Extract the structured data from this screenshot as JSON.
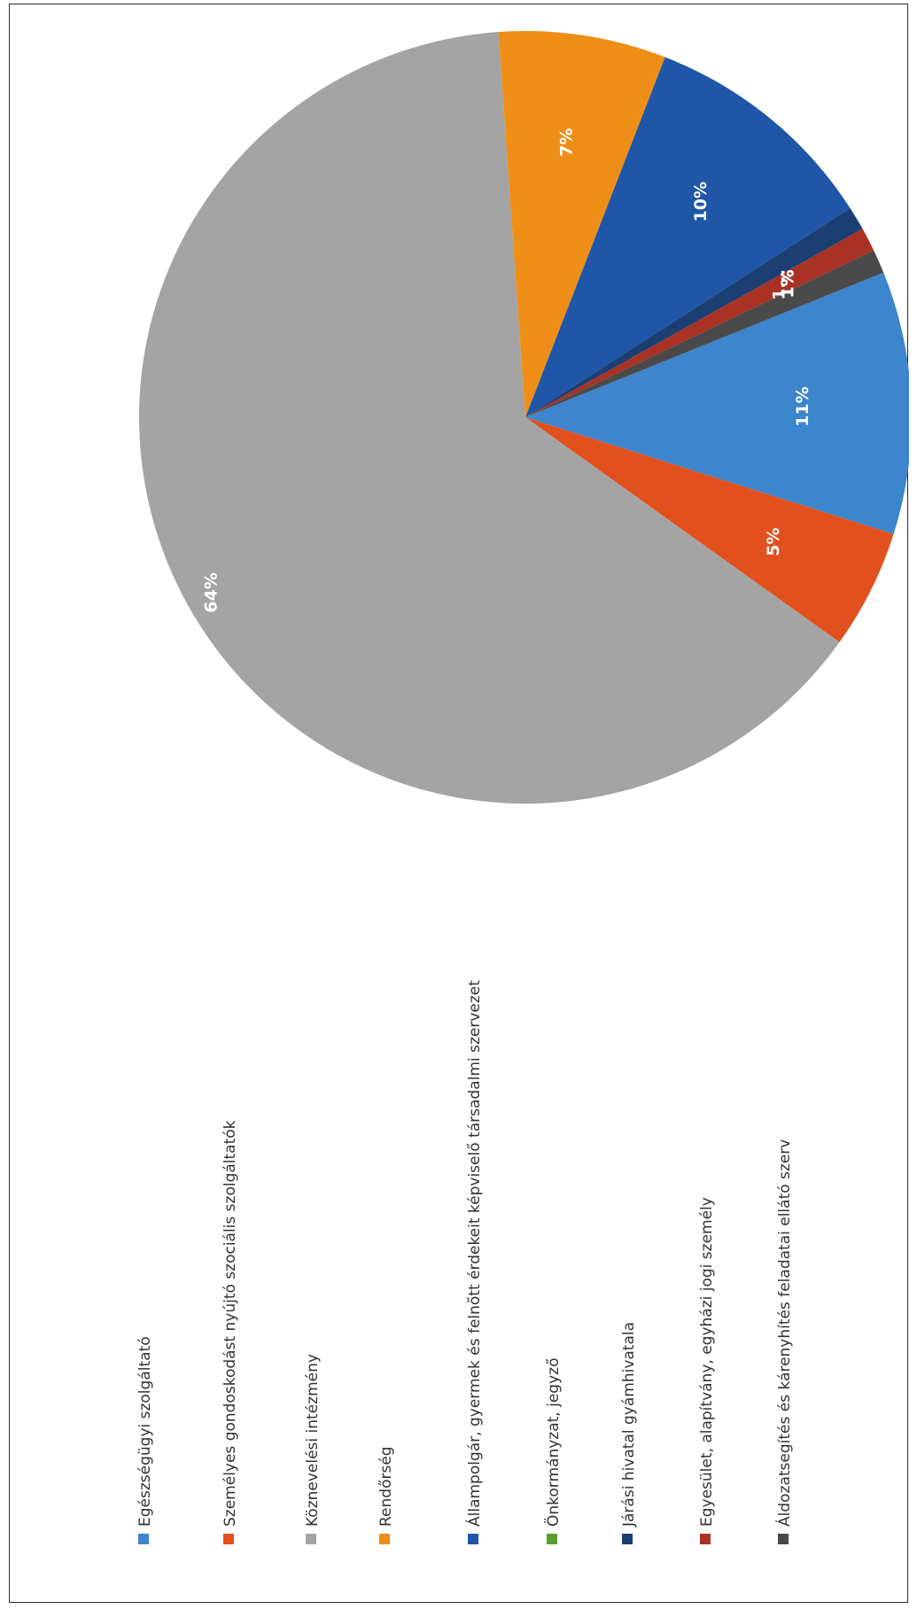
{
  "chart_data": {
    "type": "pie",
    "title": "",
    "orientation": "rotated-90-clockwise",
    "legend_position": "left",
    "data_labels": true,
    "slices": [
      {
        "name": "Egészségügyi szolgáltató",
        "value": 11,
        "label": "11%",
        "color": "#3d85cc"
      },
      {
        "name": "Személyes gondoskodást nyújtó szociális szolgáltatók",
        "value": 5,
        "label": "5%",
        "color": "#e2501d"
      },
      {
        "name": "Köznevelési intézmény",
        "value": 64,
        "label": "64%",
        "color": "#a4a4a4"
      },
      {
        "name": "Rendőrség",
        "value": 7,
        "label": "7%",
        "color": "#ef8e17"
      },
      {
        "name": "Állampolgár, gyermek és felnőtt érdekeit képviselő társadalmi szervezet",
        "value": 10,
        "label": "10%",
        "color": "#1f56a8"
      },
      {
        "name": "Önkormányzat, jegyző",
        "value": 0,
        "label": "",
        "color": "#5a9e32"
      },
      {
        "name": "Járási hivatal gyámhivatala",
        "value": 1,
        "label": "1...",
        "color": "#1c3f73"
      },
      {
        "name": "Egyesület, alapítvány, egyházi jogi személy",
        "value": 1,
        "label": "1%",
        "color": "#a93224"
      },
      {
        "name": "Áldozatsegítés és kárenyhítés feladatai ellátó szerv",
        "value": 1,
        "label": "1%",
        "color": "#4a4a4a"
      }
    ]
  }
}
